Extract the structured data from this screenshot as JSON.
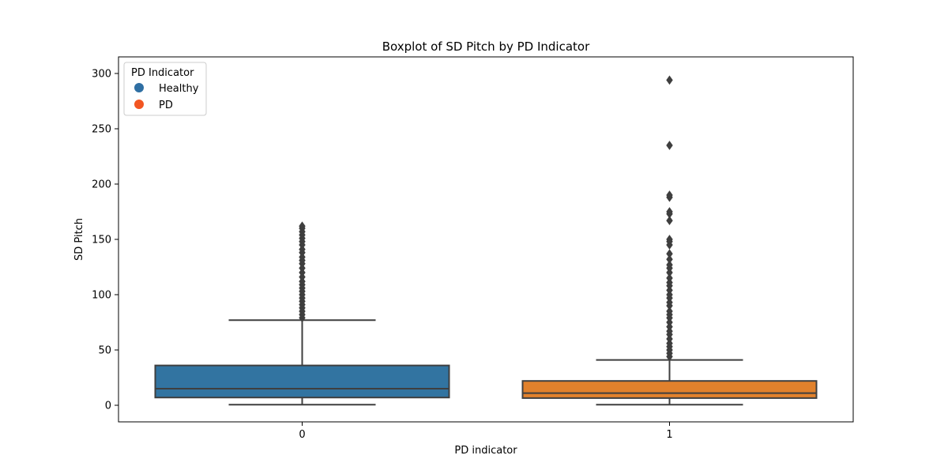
{
  "chart_data": {
    "type": "box",
    "title": "Boxplot of SD Pitch by PD Indicator",
    "xlabel": "PD indicator",
    "ylabel": "SD Pitch",
    "ylim": [
      -15,
      315
    ],
    "yticks": [
      0,
      50,
      100,
      150,
      200,
      250,
      300
    ],
    "grid": false,
    "categories": [
      "0",
      "1"
    ],
    "series": [
      {
        "category": "0",
        "color": "#3274a1",
        "whisker_low": 0.5,
        "q1": 7,
        "median": 15,
        "q3": 36,
        "whisker_high": 77,
        "outliers": [
          79,
          82,
          85,
          88,
          91,
          94,
          97,
          100,
          103,
          106,
          109,
          112,
          116,
          120,
          124,
          128,
          131,
          134,
          138,
          141,
          145,
          148,
          151,
          154,
          157,
          160,
          162
        ]
      },
      {
        "category": "1",
        "color": "#e1812c",
        "whisker_low": 0.5,
        "q1": 6.5,
        "median": 11,
        "q3": 22,
        "whisker_high": 41,
        "outliers": [
          44,
          47,
          50,
          53,
          56,
          60,
          64,
          67,
          71,
          75,
          79,
          82,
          85,
          90,
          93,
          97,
          100,
          104,
          108,
          111,
          115,
          120,
          124,
          127,
          132,
          137,
          145,
          148,
          150,
          167,
          173,
          175,
          188,
          190,
          235,
          294
        ]
      }
    ],
    "legend": {
      "title": "PD Indicator",
      "position": "top-left",
      "entries": [
        {
          "label": "Healthy",
          "color": "#2f6fa3"
        },
        {
          "label": "PD",
          "color": "#f25622"
        }
      ]
    }
  }
}
